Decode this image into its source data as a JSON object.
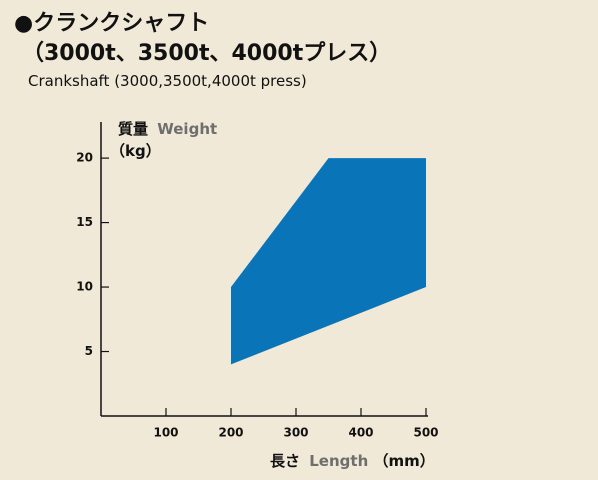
{
  "chart_data": {
    "type": "area",
    "title": "●クランクシャフト",
    "title_line2": "（3000t、3500t、4000tプレス）",
    "subtitle": "Crankshaft (3000,3500t,4000t press)",
    "y_label": {
      "ja": "質量",
      "en": "Weight",
      "unit": "（kg）"
    },
    "x_label": {
      "ja": "長さ",
      "en": "Length",
      "unit": "（mm）"
    },
    "x": [
      200,
      350,
      500,
      500,
      200
    ],
    "series": [
      {
        "color": "#0a74b8",
        "values": [
          10,
          20,
          20,
          10,
          4
        ]
      }
    ],
    "xlim": [
      0,
      500
    ],
    "xticks": [
      100,
      200,
      300,
      400,
      500
    ],
    "ylim": [
      0,
      22.8
    ],
    "yticks": [
      5,
      10,
      15,
      20
    ]
  }
}
